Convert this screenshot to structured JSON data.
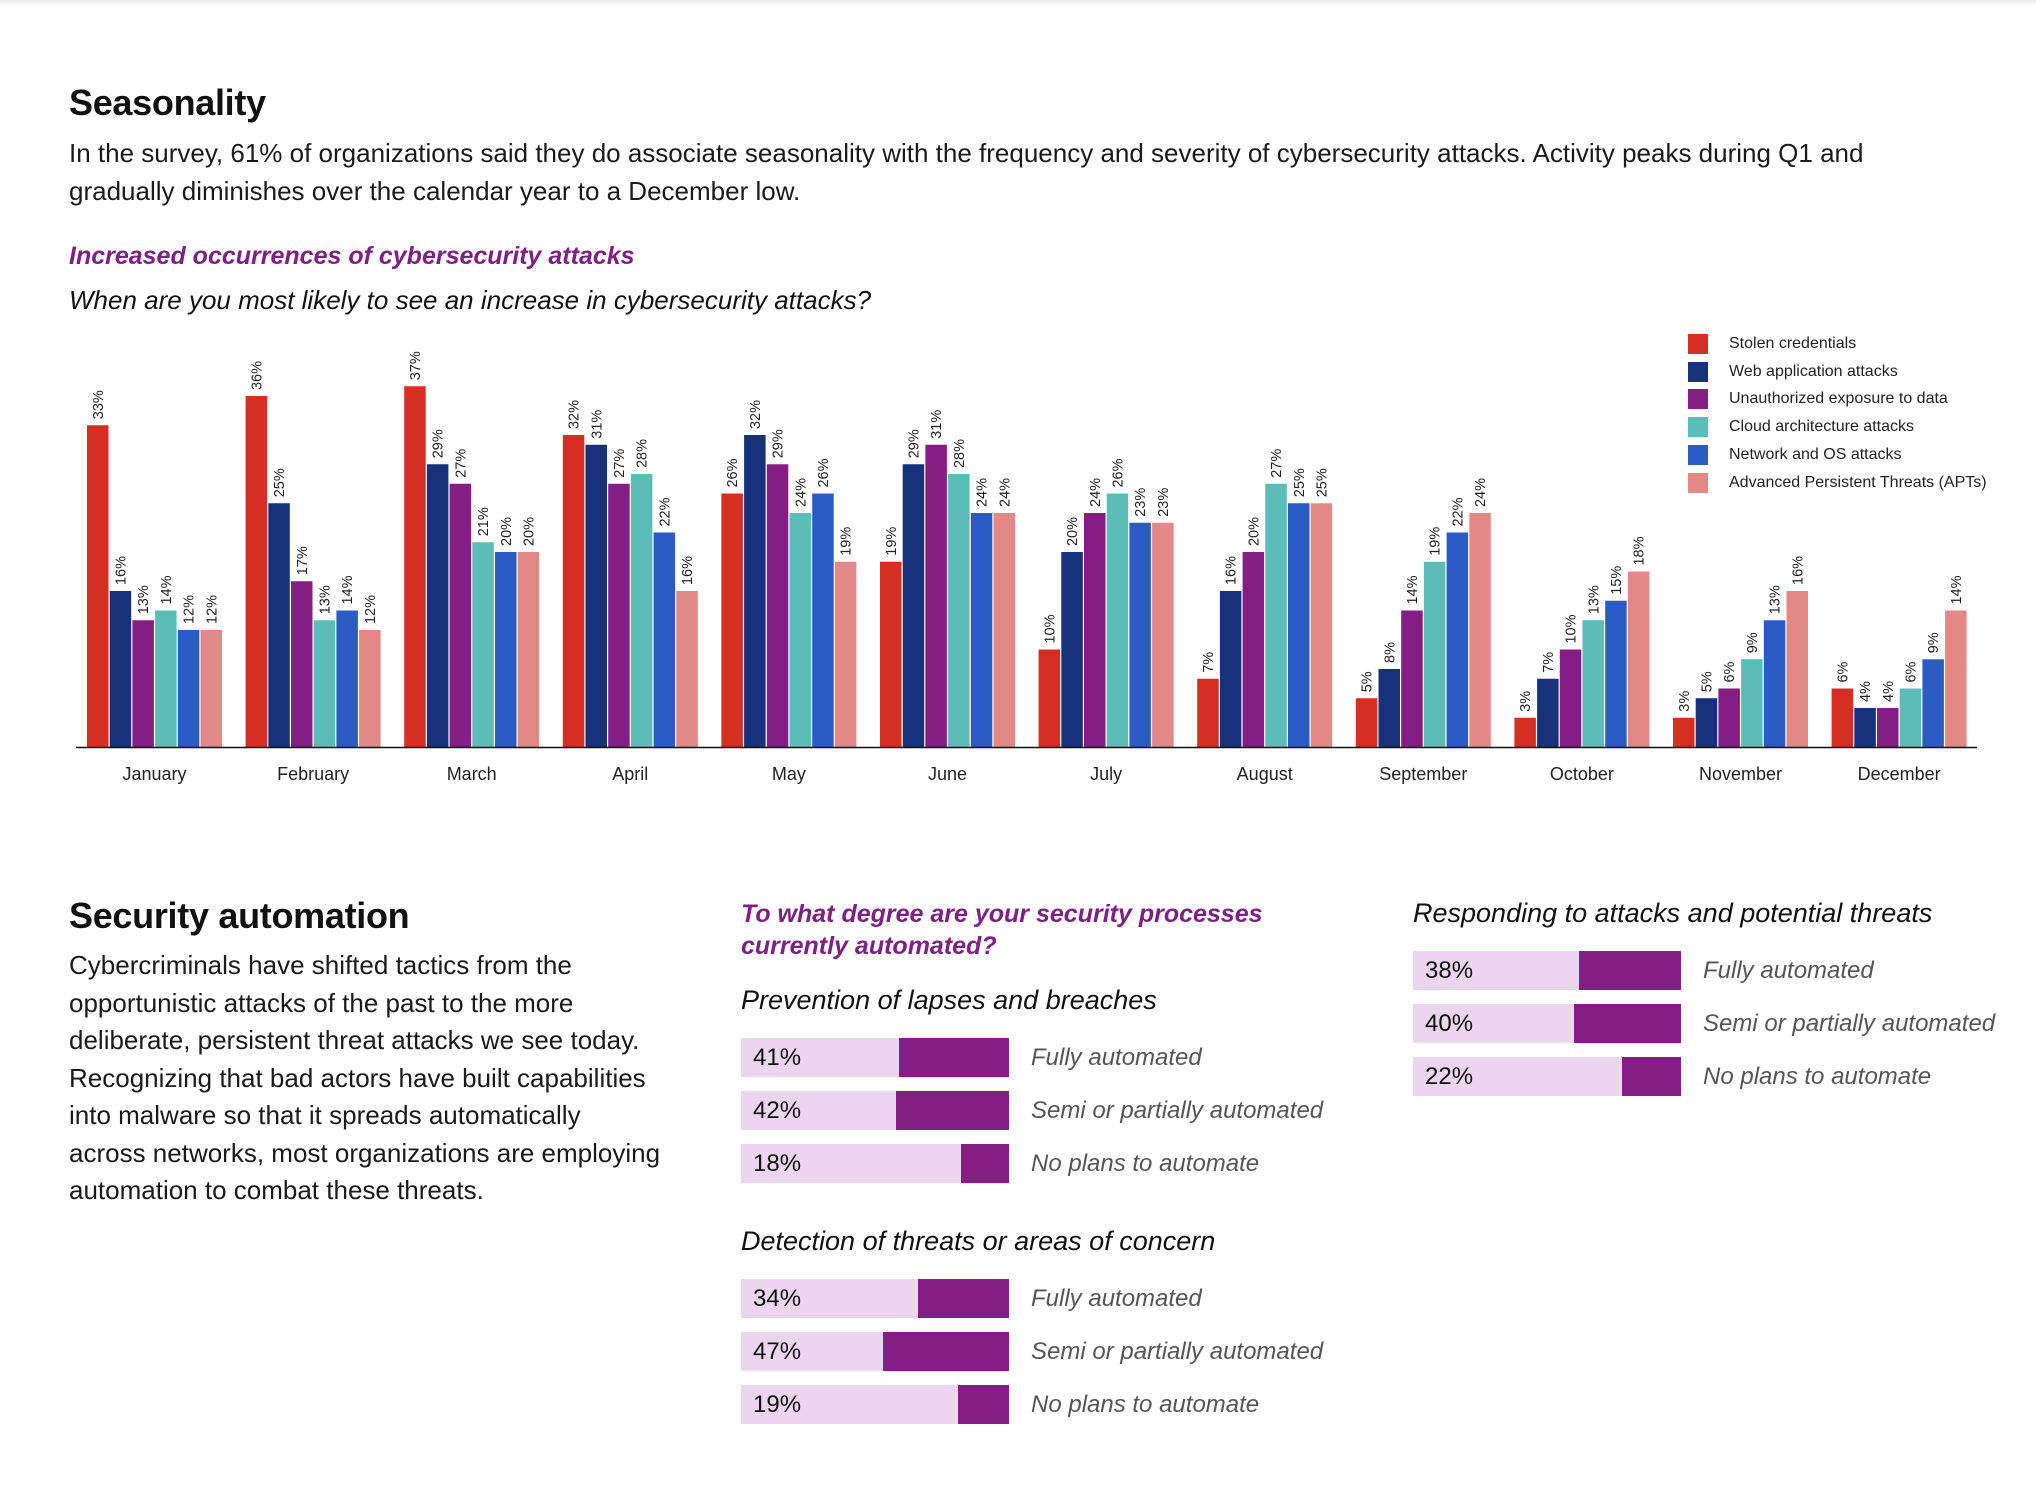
{
  "seasonality": {
    "heading": "Seasonality",
    "body_line1": "In the survey, 61% of organizations said they do associate seasonality with the frequency and severity of cybersecurity attacks. Activity peaks during Q1 and",
    "body_line2": "gradually diminishes over the calendar year to a December low.",
    "chart_title": "Increased occurrences of cybersecurity attacks",
    "chart_question": "When are you most likely to see an increase in cybersecurity attacks?"
  },
  "chart_data": {
    "type": "bar",
    "title": "Increased occurrences of cybersecurity attacks",
    "subtitle": "When are you most likely to see an increase in cybersecurity attacks?",
    "xlabel": "",
    "ylabel": "",
    "ylim": [
      0,
      40
    ],
    "grid": false,
    "legend_position": "top-right",
    "value_format": "percent",
    "categories": [
      "January",
      "February",
      "March",
      "April",
      "May",
      "June",
      "July",
      "August",
      "September",
      "October",
      "November",
      "December"
    ],
    "series": [
      {
        "name": "Stolen credentials",
        "color": "#d42f22",
        "values": [
          33,
          36,
          37,
          32,
          26,
          19,
          10,
          7,
          5,
          3,
          3,
          6
        ]
      },
      {
        "name": "Web application attacks",
        "color": "#17317a",
        "values": [
          16,
          25,
          29,
          31,
          32,
          29,
          20,
          16,
          8,
          7,
          5,
          4
        ]
      },
      {
        "name": "Unauthorized exposure to data",
        "color": "#841e84",
        "values": [
          13,
          17,
          27,
          27,
          29,
          31,
          24,
          20,
          14,
          10,
          6,
          4
        ]
      },
      {
        "name": "Cloud architecture attacks",
        "color": "#5bbcb8",
        "values": [
          14,
          13,
          21,
          28,
          24,
          28,
          26,
          27,
          19,
          13,
          9,
          6
        ]
      },
      {
        "name": "Network and OS attacks",
        "color": "#2b5cc4",
        "values": [
          12,
          14,
          20,
          22,
          26,
          24,
          23,
          25,
          22,
          15,
          13,
          9
        ]
      },
      {
        "name": "Advanced Persistent Threats (APTs)",
        "color": "#e48886",
        "values": [
          12,
          12,
          20,
          16,
          19,
          24,
          23,
          25,
          24,
          18,
          16,
          14
        ]
      }
    ]
  },
  "automation": {
    "heading": "Security automation",
    "body_lines": [
      "Cybercriminals have shifted tactics from the",
      "opportunistic attacks of the past to the more",
      "deliberate, persistent threat attacks we see today.",
      "Recognizing that bad actors have built capabilities",
      "into malware so that it spreads automatically",
      "across networks, most organizations are employing",
      "automation to combat these threats."
    ],
    "question_line1": "To what degree are your security processes",
    "question_line2": "currently automated?",
    "colors": {
      "fill": "#841e84",
      "track": "#ecd5ee"
    },
    "groups": [
      {
        "title": "Prevention of lapses and breaches",
        "rows": [
          {
            "value": 41,
            "value_label": "41%",
            "label": "Fully automated"
          },
          {
            "value": 42,
            "value_label": "42%",
            "label": "Semi or partially automated"
          },
          {
            "value": 18,
            "value_label": "18%",
            "label": "No plans to automate"
          }
        ]
      },
      {
        "title": "Detection of threats or areas of concern",
        "rows": [
          {
            "value": 34,
            "value_label": "34%",
            "label": "Fully automated"
          },
          {
            "value": 47,
            "value_label": "47%",
            "label": "Semi or partially automated"
          },
          {
            "value": 19,
            "value_label": "19%",
            "label": "No plans to automate"
          }
        ]
      },
      {
        "title": "Responding to attacks and potential threats",
        "rows": [
          {
            "value": 38,
            "value_label": "38%",
            "label": "Fully automated"
          },
          {
            "value": 40,
            "value_label": "40%",
            "label": "Semi or partially automated"
          },
          {
            "value": 22,
            "value_label": "22%",
            "label": "No plans to automate"
          }
        ]
      }
    ]
  }
}
